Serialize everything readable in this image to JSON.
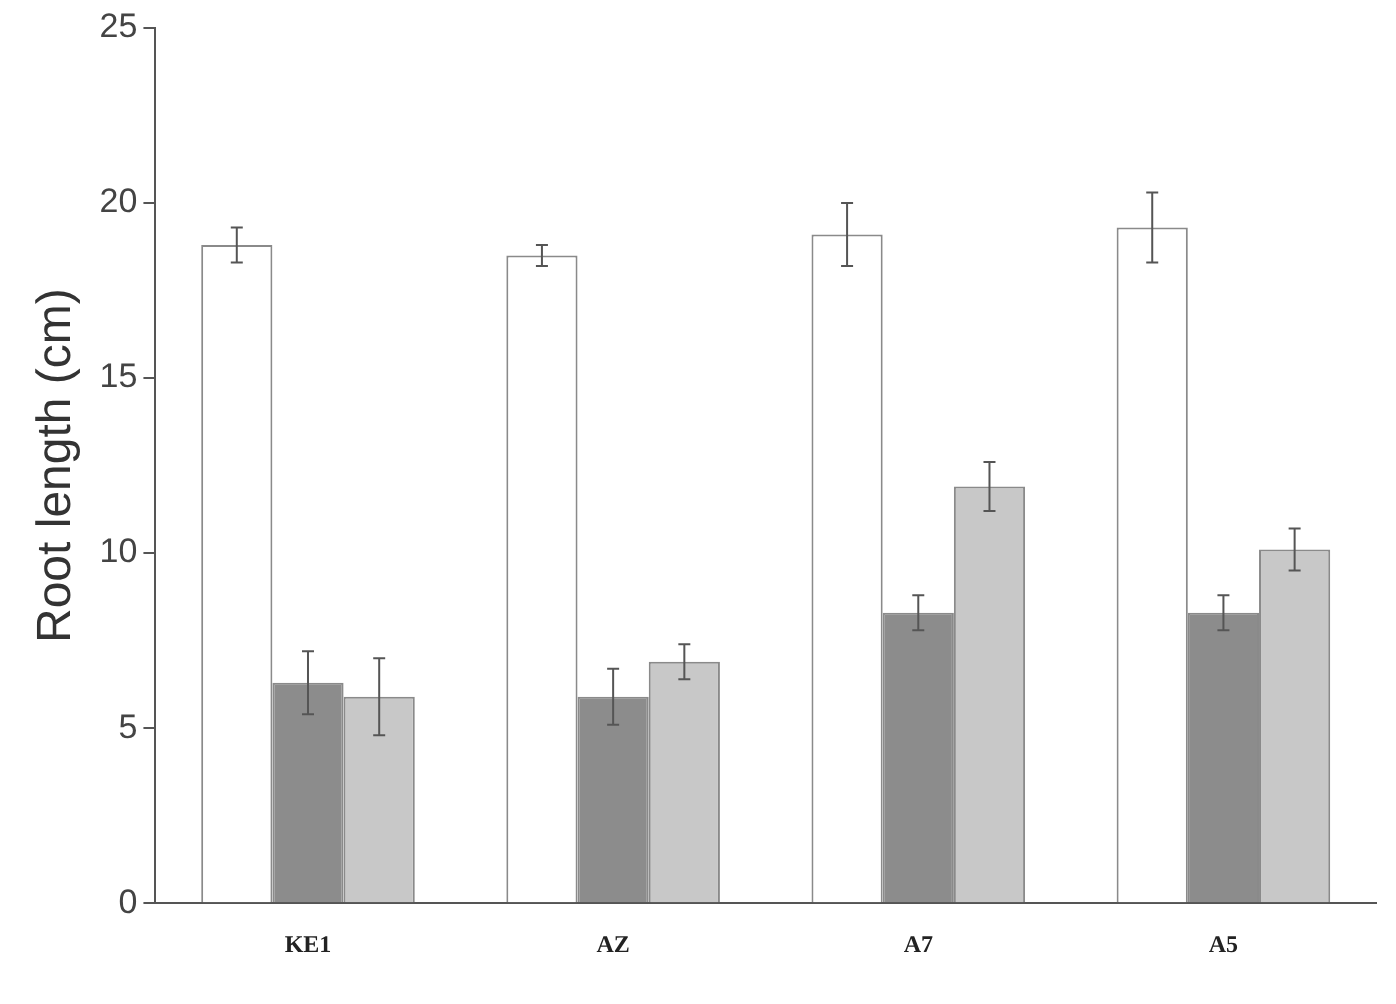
{
  "chart_data": {
    "type": "bar",
    "ylabel": "Root length (cm)",
    "categories": [
      "KE1",
      "AZ",
      "A7",
      "A5"
    ],
    "series": [
      {
        "color": "#ffffff",
        "values": [
          18.8,
          18.5,
          19.1,
          19.3
        ],
        "errors": [
          0.5,
          0.3,
          0.9,
          1.0
        ]
      },
      {
        "color": "#8c8c8c",
        "values": [
          6.3,
          5.9,
          8.3,
          8.3
        ],
        "errors": [
          0.9,
          0.8,
          0.5,
          0.5
        ]
      },
      {
        "color": "#c8c8c8",
        "values": [
          5.9,
          6.9,
          11.9,
          10.1
        ],
        "errors": [
          1.1,
          0.5,
          0.7,
          0.6
        ]
      }
    ],
    "ylim": [
      0,
      25
    ],
    "yticks": [
      0,
      5,
      10,
      15,
      20,
      25
    ],
    "grid": false,
    "legend": false
  }
}
